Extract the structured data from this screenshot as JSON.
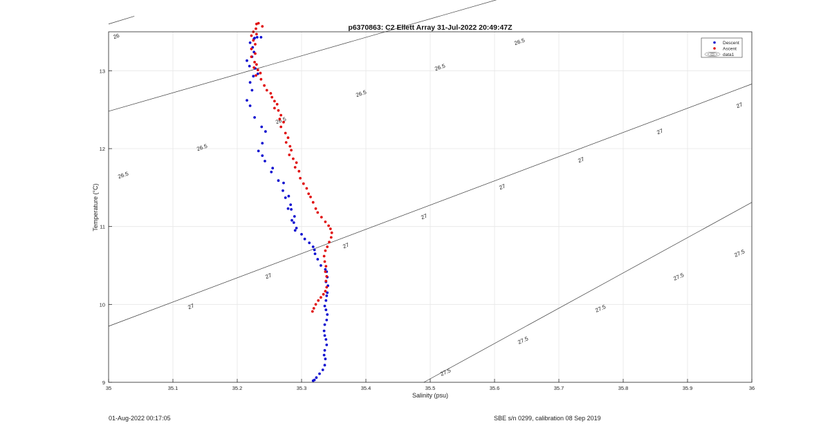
{
  "chart_data": {
    "type": "scatter",
    "title": "p6370863: C2 Ellett Array 31-Jul-2022 20:49:47Z",
    "xlabel": "Salinity (psu)",
    "ylabel": "Temperature (°C)",
    "xlim": [
      35,
      36
    ],
    "ylim": [
      9,
      13.5
    ],
    "xticks": [
      "35",
      "35.1",
      "35.2",
      "35.3",
      "35.4",
      "35.5",
      "35.6",
      "35.7",
      "35.8",
      "35.9",
      "36"
    ],
    "yticks": [
      "9",
      "10",
      "11",
      "12",
      "13"
    ],
    "grid": true,
    "legend": {
      "placement": "top-right",
      "entries": [
        "Descent",
        "Ascent",
        "data1"
      ]
    },
    "contours": [
      {
        "level": "26",
        "labels": [
          "26"
        ]
      },
      {
        "level": "26.5",
        "labels": [
          "26.5",
          "26.5",
          "26.5",
          "26.5",
          "26.5",
          "26.5"
        ]
      },
      {
        "level": "27",
        "labels": [
          "27",
          "27",
          "27",
          "27",
          "27",
          "27",
          "27",
          "27"
        ]
      },
      {
        "level": "27.5",
        "labels": [
          "27.5",
          "27.5",
          "27.5",
          "27.5",
          "27.5"
        ]
      }
    ],
    "contour_lines": [
      {
        "level": 26,
        "from": [
          35.0,
          13.6
        ],
        "to": [
          35.04,
          13.7
        ]
      },
      {
        "level": 26.5,
        "from": [
          35.0,
          12.48
        ],
        "to": [
          35.683,
          14.1
        ]
      },
      {
        "level": 27,
        "from": [
          35.0,
          9.72
        ],
        "to": [
          36.0,
          12.83
        ]
      },
      {
        "level": 27.5,
        "from": [
          35.49,
          9.0
        ],
        "to": [
          36.0,
          11.31
        ]
      }
    ],
    "series": [
      {
        "name": "Descent",
        "color": "#1010d0",
        "points": [
          [
            35.237,
            13.43
          ],
          [
            35.231,
            13.43
          ],
          [
            35.227,
            13.42
          ],
          [
            35.226,
            13.41
          ],
          [
            35.22,
            13.36
          ],
          [
            35.224,
            13.3
          ],
          [
            35.226,
            13.24
          ],
          [
            35.223,
            13.18
          ],
          [
            35.215,
            13.13
          ],
          [
            35.219,
            13.06
          ],
          [
            35.228,
            13.03
          ],
          [
            35.232,
            12.96
          ],
          [
            35.225,
            12.93
          ],
          [
            35.22,
            12.85
          ],
          [
            35.223,
            12.75
          ],
          [
            35.215,
            12.62
          ],
          [
            35.22,
            12.55
          ],
          [
            35.227,
            12.4
          ],
          [
            35.238,
            12.28
          ],
          [
            35.244,
            12.22
          ],
          [
            35.239,
            12.07
          ],
          [
            35.233,
            11.97
          ],
          [
            35.239,
            11.91
          ],
          [
            35.243,
            11.84
          ],
          [
            35.255,
            11.75
          ],
          [
            35.253,
            11.7
          ],
          [
            35.264,
            11.59
          ],
          [
            35.272,
            11.56
          ],
          [
            35.271,
            11.46
          ],
          [
            35.28,
            11.39
          ],
          [
            35.275,
            11.37
          ],
          [
            35.283,
            11.28
          ],
          [
            35.279,
            11.23
          ],
          [
            35.284,
            11.22
          ],
          [
            35.289,
            11.13
          ],
          [
            35.285,
            11.08
          ],
          [
            35.288,
            11.05
          ],
          [
            35.292,
            10.98
          ],
          [
            35.29,
            10.95
          ],
          [
            35.3,
            10.9
          ],
          [
            35.305,
            10.84
          ],
          [
            35.312,
            10.79
          ],
          [
            35.318,
            10.74
          ],
          [
            35.32,
            10.7
          ],
          [
            35.321,
            10.65
          ],
          [
            35.325,
            10.58
          ],
          [
            35.33,
            10.5
          ],
          [
            35.337,
            10.45
          ],
          [
            35.339,
            10.42
          ],
          [
            35.34,
            10.35
          ],
          [
            35.338,
            10.29
          ],
          [
            35.341,
            10.24
          ],
          [
            35.34,
            10.15
          ],
          [
            35.339,
            10.11
          ],
          [
            35.338,
            10.05
          ],
          [
            35.336,
            9.98
          ],
          [
            35.338,
            9.93
          ],
          [
            35.34,
            9.87
          ],
          [
            35.339,
            9.8
          ],
          [
            35.336,
            9.74
          ],
          [
            35.335,
            9.66
          ],
          [
            35.336,
            9.6
          ],
          [
            35.338,
            9.55
          ],
          [
            35.339,
            9.48
          ],
          [
            35.336,
            9.41
          ],
          [
            35.335,
            9.35
          ],
          [
            35.337,
            9.3
          ],
          [
            35.336,
            9.22
          ],
          [
            35.333,
            9.16
          ],
          [
            35.328,
            9.11
          ],
          [
            35.323,
            9.06
          ],
          [
            35.32,
            9.03
          ],
          [
            35.318,
            9.02
          ]
        ]
      },
      {
        "name": "Ascent",
        "color": "#e01010",
        "points": [
          [
            35.233,
            13.61
          ],
          [
            35.23,
            13.6
          ],
          [
            35.239,
            13.57
          ],
          [
            35.229,
            13.54
          ],
          [
            35.225,
            13.5
          ],
          [
            35.23,
            13.47
          ],
          [
            35.222,
            13.45
          ],
          [
            35.225,
            13.39
          ],
          [
            35.228,
            13.34
          ],
          [
            35.222,
            13.28
          ],
          [
            35.228,
            13.22
          ],
          [
            35.222,
            13.18
          ],
          [
            35.227,
            13.11
          ],
          [
            35.23,
            13.08
          ],
          [
            35.226,
            13.04
          ],
          [
            35.232,
            13.01
          ],
          [
            35.236,
            12.97
          ],
          [
            35.229,
            12.94
          ],
          [
            35.237,
            12.89
          ],
          [
            35.242,
            12.81
          ],
          [
            35.246,
            12.75
          ],
          [
            35.252,
            12.71
          ],
          [
            35.254,
            12.66
          ],
          [
            35.258,
            12.61
          ],
          [
            35.262,
            12.57
          ],
          [
            35.258,
            12.52
          ],
          [
            35.264,
            12.49
          ],
          [
            35.268,
            12.43
          ],
          [
            35.266,
            12.38
          ],
          [
            35.272,
            12.34
          ],
          [
            35.268,
            12.28
          ],
          [
            35.275,
            12.2
          ],
          [
            35.279,
            12.14
          ],
          [
            35.276,
            12.08
          ],
          [
            35.282,
            12.03
          ],
          [
            35.284,
            11.98
          ],
          [
            35.281,
            11.92
          ],
          [
            35.287,
            11.87
          ],
          [
            35.292,
            11.82
          ],
          [
            35.29,
            11.76
          ],
          [
            35.296,
            11.71
          ],
          [
            35.298,
            11.62
          ],
          [
            35.303,
            11.55
          ],
          [
            35.308,
            11.49
          ],
          [
            35.311,
            11.42
          ],
          [
            35.314,
            11.38
          ],
          [
            35.318,
            11.31
          ],
          [
            35.322,
            11.23
          ],
          [
            35.325,
            11.18
          ],
          [
            35.331,
            11.12
          ],
          [
            35.337,
            11.06
          ],
          [
            35.342,
            11.01
          ],
          [
            35.345,
            10.97
          ],
          [
            35.347,
            10.92
          ],
          [
            35.346,
            10.86
          ],
          [
            35.343,
            10.8
          ],
          [
            35.34,
            10.74
          ],
          [
            35.337,
            10.69
          ],
          [
            35.335,
            10.62
          ],
          [
            35.336,
            10.55
          ],
          [
            35.338,
            10.49
          ],
          [
            35.337,
            10.42
          ],
          [
            35.339,
            10.36
          ],
          [
            35.338,
            10.3
          ],
          [
            35.339,
            10.22
          ],
          [
            35.337,
            10.17
          ],
          [
            35.334,
            10.13
          ],
          [
            35.33,
            10.09
          ],
          [
            35.326,
            10.05
          ],
          [
            35.322,
            10.0
          ],
          [
            35.319,
            9.95
          ],
          [
            35.317,
            9.91
          ]
        ]
      }
    ]
  },
  "footer": {
    "left": "01-Aug-2022 00:17:05",
    "right": "SBE s/n 0299, calibration 08 Sep 2019"
  }
}
